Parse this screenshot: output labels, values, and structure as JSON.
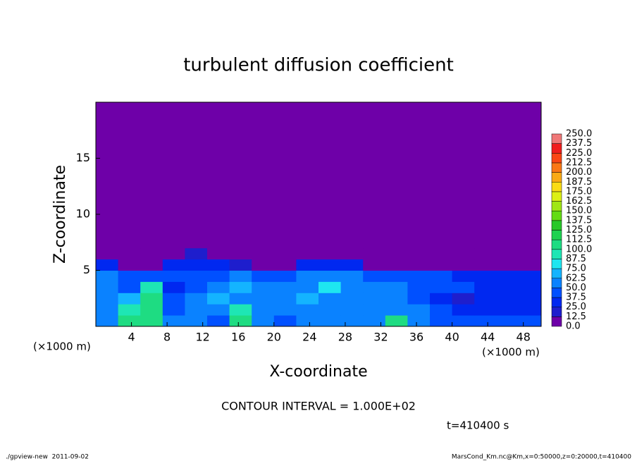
{
  "chart_data": {
    "type": "heatmap",
    "title": "turbulent diffusion coefficient",
    "xlabel": "X-coordinate",
    "ylabel": "Z-coordinate",
    "xunit": "(×1000 m)",
    "xlim": [
      0,
      50
    ],
    "ylim": [
      0,
      20
    ],
    "xticks": [
      4,
      8,
      12,
      16,
      20,
      24,
      28,
      32,
      36,
      40,
      44,
      48
    ],
    "yticks": [
      5,
      10,
      15
    ],
    "xbins": [
      0,
      2.5,
      5,
      7.5,
      10,
      12.5,
      15,
      17.5,
      20,
      22.5,
      25,
      27.5,
      30,
      32.5,
      35,
      37.5,
      40,
      42.5,
      45,
      47.5,
      50
    ],
    "ybins": [
      0,
      1,
      2,
      3,
      4,
      5,
      6,
      7,
      20
    ],
    "z": [
      [
        60,
        110,
        105,
        50,
        60,
        40,
        110,
        55,
        45,
        50,
        55,
        60,
        50,
        105,
        55,
        45,
        45,
        40,
        40,
        40
      ],
      [
        55,
        90,
        110,
        45,
        55,
        50,
        90,
        50,
        50,
        55,
        60,
        55,
        55,
        50,
        50,
        40,
        30,
        35,
        35,
        35
      ],
      [
        55,
        70,
        105,
        40,
        50,
        65,
        55,
        60,
        55,
        70,
        55,
        60,
        60,
        50,
        45,
        35,
        20,
        30,
        30,
        30
      ],
      [
        60,
        45,
        95,
        35,
        45,
        50,
        70,
        50,
        60,
        55,
        75,
        55,
        55,
        50,
        45,
        40,
        40,
        35,
        35,
        35
      ],
      [
        50,
        45,
        40,
        45,
        40,
        40,
        60,
        45,
        40,
        55,
        60,
        50,
        45,
        45,
        40,
        40,
        35,
        30,
        30,
        25
      ],
      [
        25,
        5,
        5,
        30,
        35,
        35,
        20,
        10,
        5,
        30,
        35,
        25,
        5,
        0,
        0,
        0,
        0,
        5,
        5,
        10
      ],
      [
        0,
        0,
        0,
        10,
        20,
        5,
        0,
        0,
        0,
        5,
        10,
        0,
        0,
        0,
        0,
        0,
        0,
        0,
        0,
        0
      ],
      [
        0,
        0,
        0,
        0,
        0,
        0,
        0,
        0,
        0,
        0,
        0,
        0,
        0,
        0,
        0,
        0,
        0,
        0,
        0,
        0
      ]
    ],
    "colorbar": {
      "levels": [
        {
          "value": 0,
          "label": "0.0"
        },
        12.5,
        {
          "value": 25,
          "label": "25.0"
        },
        37.5,
        {
          "value": 50,
          "label": "50.0"
        },
        62.5,
        {
          "value": 75,
          "label": "75.0"
        },
        87.5,
        {
          "value": 100,
          "label": "100.0"
        },
        112.5,
        {
          "value": 125,
          "label": "125.0"
        },
        137.5,
        {
          "value": 150,
          "label": "150.0"
        },
        162.5,
        {
          "value": 175,
          "label": "175.0"
        },
        187.5,
        {
          "value": 200,
          "label": "200.0"
        },
        212.5,
        {
          "value": 225,
          "label": "225.0"
        },
        237.5,
        {
          "value": 250,
          "label": "250.0"
        }
      ],
      "colors": [
        "#6e00a8",
        "#1e1ecd",
        "#0028f0",
        "#0050ff",
        "#0a82ff",
        "#14b4ff",
        "#1ee6f0",
        "#1ee6b4",
        "#1edc82",
        "#1ed250",
        "#28c828",
        "#64dc14",
        "#a0e614",
        "#dcf014",
        "#fadc14",
        "#faaa14",
        "#fa7814",
        "#fa4614",
        "#f01e1e",
        "#f07878"
      ]
    },
    "contour_note": "CONTOUR INTERVAL = 1.000E+02",
    "time_label": "t=410400 s",
    "footer_left": "./gpview-new  2011-09-02",
    "footer_right": "MarsCond_Km.nc@Km,x=0:50000,z=0:20000,t=410400"
  }
}
